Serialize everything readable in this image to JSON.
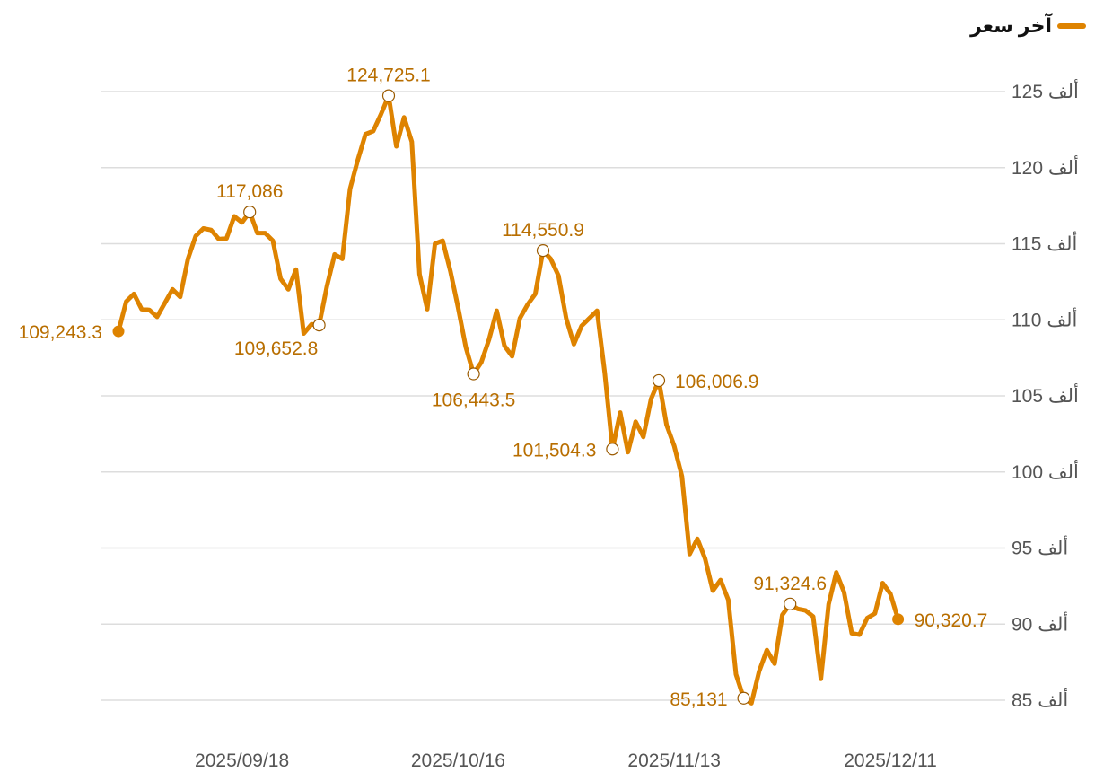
{
  "legend": {
    "label": "آخر سعر",
    "color": "#de8300"
  },
  "chart_data": {
    "type": "line",
    "series": [
      {
        "name": "آخر سعر"
      }
    ],
    "ylim": [
      85000,
      125000
    ],
    "yticks": [
      {
        "value": 125000,
        "label": "125 ألف"
      },
      {
        "value": 120000,
        "label": "120 ألف"
      },
      {
        "value": 115000,
        "label": "115 ألف"
      },
      {
        "value": 110000,
        "label": "110 ألف"
      },
      {
        "value": 105000,
        "label": "105 ألف"
      },
      {
        "value": 100000,
        "label": "100 ألف"
      },
      {
        "value": 95000,
        "label": "95 ألف"
      },
      {
        "value": 90000,
        "label": "90 ألف"
      },
      {
        "value": 85000,
        "label": "85 ألف"
      }
    ],
    "xticks": [
      {
        "date": "2025-09-18",
        "label": "2025/09/18"
      },
      {
        "date": "2025-10-16",
        "label": "2025/10/16"
      },
      {
        "date": "2025-11-13",
        "label": "2025/11/13"
      },
      {
        "date": "2025-12-11",
        "label": "2025/12/11"
      }
    ],
    "points": [
      [
        "2025-09-02",
        109243.3
      ],
      [
        "2025-09-03",
        111200
      ],
      [
        "2025-09-04",
        111700
      ],
      [
        "2025-09-05",
        110700
      ],
      [
        "2025-09-06",
        110650
      ],
      [
        "2025-09-07",
        110200
      ],
      [
        "2025-09-08",
        111100
      ],
      [
        "2025-09-09",
        112000
      ],
      [
        "2025-09-10",
        111500
      ],
      [
        "2025-09-11",
        114000
      ],
      [
        "2025-09-12",
        115500
      ],
      [
        "2025-09-13",
        116000
      ],
      [
        "2025-09-14",
        115900
      ],
      [
        "2025-09-15",
        115300
      ],
      [
        "2025-09-16",
        115350
      ],
      [
        "2025-09-17",
        116800
      ],
      [
        "2025-09-18",
        116400
      ],
      [
        "2025-09-19",
        117086
      ],
      [
        "2025-09-20",
        115700
      ],
      [
        "2025-09-21",
        115700
      ],
      [
        "2025-09-22",
        115200
      ],
      [
        "2025-09-23",
        112700
      ],
      [
        "2025-09-24",
        112000
      ],
      [
        "2025-09-25",
        113300
      ],
      [
        "2025-09-26",
        109100
      ],
      [
        "2025-09-27",
        109700
      ],
      [
        "2025-09-28",
        109652.8
      ],
      [
        "2025-09-29",
        112200
      ],
      [
        "2025-09-30",
        114300
      ],
      [
        "2025-10-01",
        114000
      ],
      [
        "2025-10-02",
        118600
      ],
      [
        "2025-10-03",
        120500
      ],
      [
        "2025-10-04",
        122200
      ],
      [
        "2025-10-05",
        122400
      ],
      [
        "2025-10-06",
        123500
      ],
      [
        "2025-10-07",
        124725.1
      ],
      [
        "2025-10-08",
        121400
      ],
      [
        "2025-10-09",
        123300
      ],
      [
        "2025-10-10",
        121700
      ],
      [
        "2025-10-11",
        113000
      ],
      [
        "2025-10-12",
        110700
      ],
      [
        "2025-10-13",
        115000
      ],
      [
        "2025-10-14",
        115200
      ],
      [
        "2025-10-15",
        113200
      ],
      [
        "2025-10-16",
        110800
      ],
      [
        "2025-10-17",
        108200
      ],
      [
        "2025-10-18",
        106443.5
      ],
      [
        "2025-10-19",
        107200
      ],
      [
        "2025-10-20",
        108700
      ],
      [
        "2025-10-21",
        110600
      ],
      [
        "2025-10-22",
        108300
      ],
      [
        "2025-10-23",
        107600
      ],
      [
        "2025-10-24",
        110100
      ],
      [
        "2025-10-25",
        111000
      ],
      [
        "2025-10-26",
        111700
      ],
      [
        "2025-10-27",
        114550.9
      ],
      [
        "2025-10-28",
        114000
      ],
      [
        "2025-10-29",
        112900
      ],
      [
        "2025-10-30",
        110100
      ],
      [
        "2025-10-31",
        108400
      ],
      [
        "2025-11-01",
        109600
      ],
      [
        "2025-11-02",
        110100
      ],
      [
        "2025-11-03",
        110600
      ],
      [
        "2025-11-04",
        106500
      ],
      [
        "2025-11-05",
        101504.3
      ],
      [
        "2025-11-06",
        103900
      ],
      [
        "2025-11-07",
        101300
      ],
      [
        "2025-11-08",
        103300
      ],
      [
        "2025-11-09",
        102300
      ],
      [
        "2025-11-10",
        104800
      ],
      [
        "2025-11-11",
        106006.9
      ],
      [
        "2025-11-12",
        103100
      ],
      [
        "2025-11-13",
        101700
      ],
      [
        "2025-11-14",
        99700
      ],
      [
        "2025-11-15",
        94600
      ],
      [
        "2025-11-16",
        95600
      ],
      [
        "2025-11-17",
        94300
      ],
      [
        "2025-11-18",
        92200
      ],
      [
        "2025-11-19",
        92900
      ],
      [
        "2025-11-20",
        91600
      ],
      [
        "2025-11-21",
        86700
      ],
      [
        "2025-11-22",
        85131
      ],
      [
        "2025-11-23",
        84800
      ],
      [
        "2025-11-24",
        86900
      ],
      [
        "2025-11-25",
        88300
      ],
      [
        "2025-11-26",
        87400
      ],
      [
        "2025-11-27",
        90600
      ],
      [
        "2025-11-28",
        91324.6
      ],
      [
        "2025-11-29",
        91000
      ],
      [
        "2025-11-30",
        90900
      ],
      [
        "2025-12-01",
        90500
      ],
      [
        "2025-12-02",
        86400
      ],
      [
        "2025-12-03",
        91300
      ],
      [
        "2025-12-04",
        93400
      ],
      [
        "2025-12-05",
        92100
      ],
      [
        "2025-12-06",
        89400
      ],
      [
        "2025-12-07",
        89300
      ],
      [
        "2025-12-08",
        90400
      ],
      [
        "2025-12-09",
        90700
      ],
      [
        "2025-12-10",
        92700
      ],
      [
        "2025-12-11",
        92000
      ],
      [
        "2025-12-12",
        90320.7
      ]
    ],
    "annotations": [
      {
        "date": "2025-09-02",
        "value": 109243.3,
        "label": "109,243.3",
        "marker": "filled",
        "pos": "left"
      },
      {
        "date": "2025-09-19",
        "value": 117086,
        "label": "117,086",
        "marker": "ring",
        "pos": "above"
      },
      {
        "date": "2025-09-28",
        "value": 109652.8,
        "label": "109,652.8",
        "marker": "ring",
        "pos": "below-left"
      },
      {
        "date": "2025-10-07",
        "value": 124725.1,
        "label": "124,725.1",
        "marker": "ring",
        "pos": "above"
      },
      {
        "date": "2025-10-18",
        "value": 106443.5,
        "label": "106,443.5",
        "marker": "ring",
        "pos": "below"
      },
      {
        "date": "2025-10-27",
        "value": 114550.9,
        "label": "114,550.9",
        "marker": "ring",
        "pos": "above"
      },
      {
        "date": "2025-11-05",
        "value": 101504.3,
        "label": "101,504.3",
        "marker": "ring",
        "pos": "left"
      },
      {
        "date": "2025-11-11",
        "value": 106006.9,
        "label": "106,006.9",
        "marker": "ring",
        "pos": "right"
      },
      {
        "date": "2025-11-22",
        "value": 85131,
        "label": "85,131",
        "marker": "ring",
        "pos": "left"
      },
      {
        "date": "2025-11-28",
        "value": 91324.6,
        "label": "91,324.6",
        "marker": "ring",
        "pos": "above"
      },
      {
        "date": "2025-12-12",
        "value": 90320.7,
        "label": "90,320.7",
        "marker": "filled",
        "pos": "right"
      }
    ]
  }
}
